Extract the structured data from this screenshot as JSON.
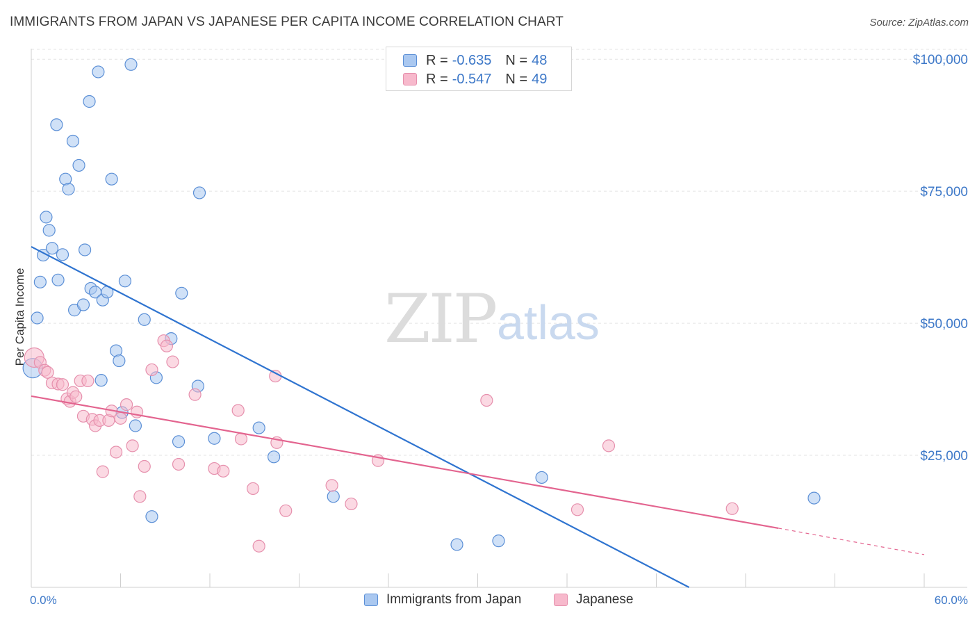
{
  "title": "IMMIGRANTS FROM JAPAN VS JAPANESE PER CAPITA INCOME CORRELATION CHART",
  "source": "Source: ZipAtlas.com",
  "watermark": {
    "zip": "ZIP",
    "atlas": "atlas"
  },
  "colors": {
    "blue_fill": "#aac8f0",
    "blue_stroke": "#5b8fd6",
    "blue_line": "#2f74d0",
    "pink_fill": "#f7b9cc",
    "pink_stroke": "#e690ad",
    "pink_line": "#e3648f",
    "tick_text": "#3d78c8",
    "grid": "#e3e3e3"
  },
  "legend": {
    "r_label": "R =",
    "n_label": "N =",
    "series": [
      {
        "r_value": "-0.635",
        "n_value": "48"
      },
      {
        "r_value": "-0.547",
        "n_value": "49"
      }
    ]
  },
  "bottom_legend": {
    "blue": "Immigrants from Japan",
    "pink": "Japanese"
  },
  "chart_data": {
    "type": "scatter",
    "title": "IMMIGRANTS FROM JAPAN VS JAPANESE PER CAPITA INCOME CORRELATION CHART",
    "xlabel": "",
    "ylabel": "Per Capita Income",
    "xlim": [
      0,
      60
    ],
    "ylim": [
      0,
      102000
    ],
    "x_tick_labels": {
      "min": "0.0%",
      "max": "60.0%"
    },
    "y_ticks": [
      {
        "value": 25000,
        "label": "$25,000"
      },
      {
        "value": 50000,
        "label": "$50,000"
      },
      {
        "value": 75000,
        "label": "$75,000"
      },
      {
        "value": 100000,
        "label": "$100,000"
      }
    ],
    "grid": true,
    "series": [
      {
        "name": "Immigrants from Japan",
        "color": "blue",
        "trend": {
          "x0": 0,
          "y0": 64500,
          "x1": 44.2,
          "y1": 0
        },
        "points": [
          [
            0.1,
            41500,
            2
          ],
          [
            0.4,
            51000,
            1
          ],
          [
            0.6,
            57800,
            1
          ],
          [
            0.8,
            62900,
            1
          ],
          [
            1.0,
            70100,
            1
          ],
          [
            1.2,
            67600,
            1
          ],
          [
            1.4,
            64200,
            1
          ],
          [
            1.7,
            87600,
            1
          ],
          [
            1.8,
            58200,
            1
          ],
          [
            2.1,
            63000,
            1
          ],
          [
            2.3,
            77300,
            1
          ],
          [
            2.5,
            75400,
            1
          ],
          [
            2.8,
            84500,
            1
          ],
          [
            2.9,
            52500,
            1
          ],
          [
            3.2,
            79900,
            1
          ],
          [
            3.5,
            53500,
            1
          ],
          [
            3.6,
            63900,
            1
          ],
          [
            3.9,
            92000,
            1
          ],
          [
            4.0,
            56600,
            1
          ],
          [
            4.3,
            55900,
            1
          ],
          [
            4.5,
            97600,
            1
          ],
          [
            4.7,
            39200,
            1
          ],
          [
            4.8,
            54400,
            1
          ],
          [
            5.1,
            55900,
            1
          ],
          [
            5.4,
            77300,
            1
          ],
          [
            5.7,
            44800,
            1
          ],
          [
            5.9,
            42900,
            1
          ],
          [
            6.1,
            33100,
            1
          ],
          [
            6.3,
            58000,
            1
          ],
          [
            6.7,
            99000,
            1
          ],
          [
            7.0,
            30600,
            1
          ],
          [
            7.6,
            50700,
            1
          ],
          [
            8.1,
            13400,
            1
          ],
          [
            8.4,
            39700,
            1
          ],
          [
            9.4,
            47100,
            1
          ],
          [
            9.9,
            27600,
            1
          ],
          [
            10.1,
            55700,
            1
          ],
          [
            11.3,
            74700,
            1
          ],
          [
            11.2,
            38100,
            1
          ],
          [
            12.3,
            28200,
            1
          ],
          [
            15.3,
            30200,
            1
          ],
          [
            16.3,
            24700,
            1
          ],
          [
            20.3,
            17200,
            1
          ],
          [
            28.6,
            8100,
            1
          ],
          [
            31.4,
            8800,
            1
          ],
          [
            34.3,
            20800,
            1
          ],
          [
            52.6,
            16900,
            1
          ]
        ]
      },
      {
        "name": "Japanese",
        "color": "pink",
        "trend": {
          "x0": 0,
          "y0": 36200,
          "x1": 50.2,
          "y1": 11200,
          "dash_x1": 60.0,
          "dash_y1": 6200
        },
        "points": [
          [
            0.2,
            43500,
            2
          ],
          [
            0.6,
            42600,
            1
          ],
          [
            0.9,
            41100,
            1
          ],
          [
            1.1,
            40700,
            1
          ],
          [
            1.4,
            38700,
            1
          ],
          [
            1.8,
            38500,
            1
          ],
          [
            2.1,
            38400,
            1
          ],
          [
            2.4,
            35700,
            1
          ],
          [
            2.6,
            35200,
            1
          ],
          [
            2.8,
            36900,
            1
          ],
          [
            3.0,
            36100,
            1
          ],
          [
            3.3,
            39100,
            1
          ],
          [
            3.5,
            32400,
            1
          ],
          [
            3.8,
            39100,
            1
          ],
          [
            4.1,
            31800,
            1
          ],
          [
            4.3,
            30600,
            1
          ],
          [
            4.6,
            31600,
            1
          ],
          [
            4.8,
            21900,
            1
          ],
          [
            5.2,
            31600,
            1
          ],
          [
            5.4,
            33400,
            1
          ],
          [
            5.7,
            25600,
            1
          ],
          [
            6.0,
            32000,
            1
          ],
          [
            6.4,
            34600,
            1
          ],
          [
            6.8,
            26800,
            1
          ],
          [
            7.1,
            33200,
            1
          ],
          [
            7.3,
            17200,
            1
          ],
          [
            7.6,
            22900,
            1
          ],
          [
            8.1,
            41200,
            1
          ],
          [
            8.9,
            46700,
            1
          ],
          [
            9.1,
            45700,
            1
          ],
          [
            9.5,
            42700,
            1
          ],
          [
            9.9,
            23300,
            1
          ],
          [
            11.0,
            36500,
            1
          ],
          [
            12.3,
            22500,
            1
          ],
          [
            12.9,
            22000,
            1
          ],
          [
            13.9,
            33500,
            1
          ],
          [
            14.1,
            28100,
            1
          ],
          [
            14.9,
            18700,
            1
          ],
          [
            15.3,
            7800,
            1
          ],
          [
            16.4,
            40000,
            1
          ],
          [
            16.5,
            27400,
            1
          ],
          [
            17.1,
            14500,
            1
          ],
          [
            20.2,
            19300,
            1
          ],
          [
            21.5,
            15800,
            1
          ],
          [
            23.3,
            24000,
            1
          ],
          [
            30.6,
            35400,
            1
          ],
          [
            36.7,
            14700,
            1
          ],
          [
            38.8,
            26800,
            1
          ],
          [
            47.1,
            14900,
            1
          ]
        ]
      }
    ]
  }
}
